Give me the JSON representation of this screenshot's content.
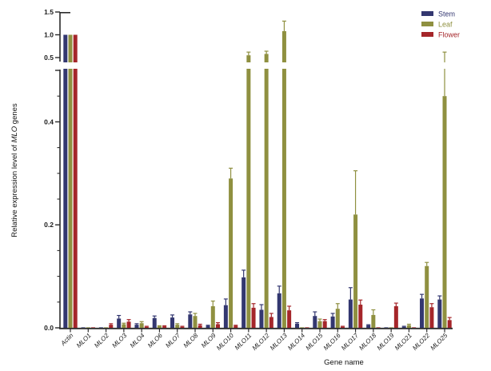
{
  "figure": {
    "kind": "grouped-bar-chart-with-axis-break"
  },
  "chart_data": {
    "type": "bar",
    "title": "",
    "xlabel": "Gene name",
    "ylabel_prefix": "Relative expression level of ",
    "ylabel_italic": "MLO",
    "ylabel_suffix": " genes",
    "legend_position": "top-right",
    "grid": false,
    "axis_break": {
      "lower_range": [
        0,
        0.5
      ],
      "upper_range": [
        0.5,
        1.5
      ],
      "lower_major_ticks": [
        0,
        0.2,
        0.4
      ],
      "lower_minor_interval": 0.05,
      "upper_major_ticks": [
        0.5,
        1.0,
        1.5
      ]
    },
    "categories": [
      "Actin",
      "MLO1",
      "MLO2",
      "MLO3",
      "MLO4",
      "MLO6",
      "MLO7",
      "MLO8",
      "MLO9",
      "MLO10",
      "MLO11",
      "MLO12",
      "MLO13",
      "MLO14",
      "MLO15",
      "MLO16",
      "MLO17",
      "MLO18",
      "MLO19",
      "MLO21",
      "MLO22",
      "MLO25"
    ],
    "series": [
      {
        "name": "Stem",
        "color": "#333770",
        "values": [
          1.0,
          0.001,
          0.001,
          0.018,
          0.006,
          0.019,
          0.02,
          0.026,
          0.004,
          0.044,
          0.098,
          0.035,
          0.067,
          0.008,
          0.023,
          0.022,
          0.055,
          0.005,
          0.001,
          0.002,
          0.057,
          0.055
        ],
        "errors": [
          0,
          0,
          0,
          0.006,
          0.002,
          0.004,
          0.005,
          0.005,
          0.001,
          0.012,
          0.014,
          0.01,
          0.014,
          0.002,
          0.008,
          0.006,
          0.023,
          0.001,
          0,
          0.001,
          0.008,
          0.007
        ]
      },
      {
        "name": "Leaf",
        "color": "#8f9040",
        "values": [
          1.0,
          0.001,
          0.001,
          0.007,
          0.009,
          0.003,
          0.006,
          0.023,
          0.042,
          0.29,
          0.55,
          0.58,
          1.08,
          0.001,
          0.013,
          0.037,
          0.22,
          0.025,
          0.001,
          0.005,
          0.12,
          0.45
        ],
        "errors": [
          0,
          0,
          0,
          0.002,
          0.003,
          0.001,
          0.002,
          0.005,
          0.01,
          0.02,
          0.07,
          0.06,
          0.22,
          0,
          0.004,
          0.01,
          0.085,
          0.01,
          0,
          0.002,
          0.007,
          0.17
        ]
      },
      {
        "name": "Flower",
        "color": "#a5262a",
        "values": [
          1.0,
          0.001,
          0.006,
          0.012,
          0.002,
          0.003,
          0.002,
          0.005,
          0.007,
          0.004,
          0.039,
          0.021,
          0.034,
          0.001,
          0.013,
          0.002,
          0.045,
          0.001,
          0.042,
          0.001,
          0.04,
          0.015
        ],
        "errors": [
          0,
          0,
          0.002,
          0.004,
          0.001,
          0.001,
          0.001,
          0.002,
          0.003,
          0.001,
          0.008,
          0.007,
          0.008,
          0,
          0.003,
          0.001,
          0.009,
          0,
          0.006,
          0,
          0.007,
          0.005
        ]
      }
    ],
    "tick_label_format": {
      "lower": [
        "0.0",
        "0.2",
        "0.4"
      ],
      "upper": [
        "0.5",
        "1.0",
        "1.5"
      ]
    },
    "axis_color": "#2b2b2b"
  }
}
